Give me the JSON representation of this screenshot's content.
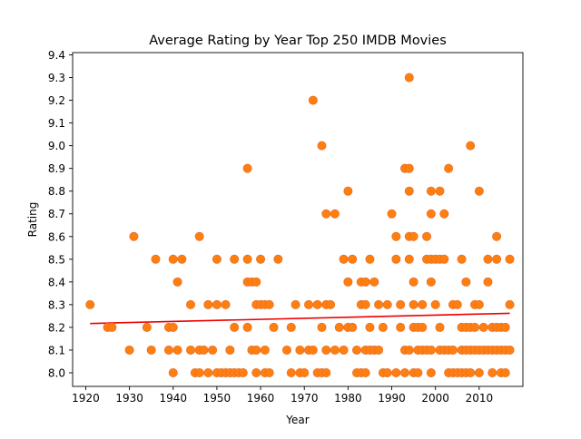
{
  "chart_data": {
    "type": "scatter",
    "title": "Average Rating by Year Top 250 IMDB Movies",
    "xlabel": "Year",
    "ylabel": "Rating",
    "xlim": [
      1917,
      2020
    ],
    "ylim": [
      7.94,
      9.41
    ],
    "xticks": [
      1920,
      1930,
      1940,
      1950,
      1960,
      1970,
      1980,
      1990,
      2000,
      2010
    ],
    "yticks": [
      "8.0",
      "8.1",
      "8.2",
      "8.3",
      "8.4",
      "8.5",
      "8.6",
      "8.7",
      "8.8",
      "8.9",
      "9.0",
      "9.1",
      "9.2",
      "9.3",
      "9.4"
    ],
    "grid": false,
    "legend": "none",
    "point_color": "#ff7f0e",
    "point_edge_color": "#e8702a",
    "trend_color": "#ee0000",
    "trendline": {
      "x": [
        1921,
        2017
      ],
      "y": [
        8.217,
        8.262
      ]
    },
    "points": [
      [
        1921,
        8.3
      ],
      [
        1925,
        8.2
      ],
      [
        1926,
        8.2
      ],
      [
        1930,
        8.1
      ],
      [
        1931,
        8.6
      ],
      [
        1934,
        8.2
      ],
      [
        1935,
        8.1
      ],
      [
        1936,
        8.5
      ],
      [
        1939,
        8.1
      ],
      [
        1939,
        8.2
      ],
      [
        1940,
        8.0
      ],
      [
        1940,
        8.2
      ],
      [
        1940,
        8.5
      ],
      [
        1941,
        8.1
      ],
      [
        1941,
        8.4
      ],
      [
        1942,
        8.5
      ],
      [
        1944,
        8.1
      ],
      [
        1944,
        8.3
      ],
      [
        1945,
        8.0
      ],
      [
        1946,
        8.0
      ],
      [
        1946,
        8.1
      ],
      [
        1946,
        8.6
      ],
      [
        1947,
        8.1
      ],
      [
        1948,
        8.0
      ],
      [
        1948,
        8.3
      ],
      [
        1949,
        8.1
      ],
      [
        1950,
        8.0
      ],
      [
        1950,
        8.3
      ],
      [
        1950,
        8.5
      ],
      [
        1951,
        8.0
      ],
      [
        1952,
        8.0
      ],
      [
        1952,
        8.3
      ],
      [
        1953,
        8.0
      ],
      [
        1953,
        8.1
      ],
      [
        1954,
        8.0
      ],
      [
        1954,
        8.2
      ],
      [
        1954,
        8.5
      ],
      [
        1955,
        8.0
      ],
      [
        1956,
        8.0
      ],
      [
        1957,
        8.2
      ],
      [
        1957,
        8.4
      ],
      [
        1957,
        8.5
      ],
      [
        1957,
        8.9
      ],
      [
        1958,
        8.1
      ],
      [
        1958,
        8.4
      ],
      [
        1959,
        8.0
      ],
      [
        1959,
        8.1
      ],
      [
        1959,
        8.3
      ],
      [
        1959,
        8.4
      ],
      [
        1960,
        8.3
      ],
      [
        1960,
        8.5
      ],
      [
        1961,
        8.0
      ],
      [
        1961,
        8.1
      ],
      [
        1961,
        8.3
      ],
      [
        1962,
        8.0
      ],
      [
        1962,
        8.3
      ],
      [
        1963,
        8.2
      ],
      [
        1964,
        8.5
      ],
      [
        1966,
        8.1
      ],
      [
        1967,
        8.0
      ],
      [
        1967,
        8.2
      ],
      [
        1968,
        8.3
      ],
      [
        1969,
        8.0
      ],
      [
        1969,
        8.1
      ],
      [
        1970,
        8.0
      ],
      [
        1971,
        8.1
      ],
      [
        1971,
        8.3
      ],
      [
        1972,
        8.1
      ],
      [
        1972,
        9.2
      ],
      [
        1973,
        8.0
      ],
      [
        1973,
        8.3
      ],
      [
        1974,
        8.0
      ],
      [
        1974,
        8.2
      ],
      [
        1974,
        9.0
      ],
      [
        1975,
        8.0
      ],
      [
        1975,
        8.1
      ],
      [
        1975,
        8.3
      ],
      [
        1975,
        8.7
      ],
      [
        1976,
        8.3
      ],
      [
        1977,
        8.1
      ],
      [
        1977,
        8.7
      ],
      [
        1978,
        8.2
      ],
      [
        1979,
        8.1
      ],
      [
        1979,
        8.5
      ],
      [
        1980,
        8.2
      ],
      [
        1980,
        8.4
      ],
      [
        1980,
        8.8
      ],
      [
        1981,
        8.2
      ],
      [
        1981,
        8.5
      ],
      [
        1982,
        8.0
      ],
      [
        1982,
        8.1
      ],
      [
        1983,
        8.0
      ],
      [
        1983,
        8.3
      ],
      [
        1983,
        8.4
      ],
      [
        1984,
        8.0
      ],
      [
        1984,
        8.1
      ],
      [
        1984,
        8.3
      ],
      [
        1984,
        8.4
      ],
      [
        1985,
        8.1
      ],
      [
        1985,
        8.2
      ],
      [
        1985,
        8.5
      ],
      [
        1986,
        8.1
      ],
      [
        1986,
        8.4
      ],
      [
        1987,
        8.1
      ],
      [
        1987,
        8.3
      ],
      [
        1988,
        8.0
      ],
      [
        1988,
        8.2
      ],
      [
        1989,
        8.0
      ],
      [
        1989,
        8.3
      ],
      [
        1990,
        8.7
      ],
      [
        1991,
        8.0
      ],
      [
        1991,
        8.5
      ],
      [
        1991,
        8.6
      ],
      [
        1992,
        8.2
      ],
      [
        1992,
        8.3
      ],
      [
        1993,
        8.0
      ],
      [
        1993,
        8.1
      ],
      [
        1993,
        8.9
      ],
      [
        1994,
        8.1
      ],
      [
        1994,
        8.5
      ],
      [
        1994,
        8.6
      ],
      [
        1994,
        8.8
      ],
      [
        1994,
        8.9
      ],
      [
        1994,
        9.3
      ],
      [
        1995,
        8.0
      ],
      [
        1995,
        8.2
      ],
      [
        1995,
        8.3
      ],
      [
        1995,
        8.4
      ],
      [
        1995,
        8.6
      ],
      [
        1996,
        8.0
      ],
      [
        1996,
        8.1
      ],
      [
        1996,
        8.2
      ],
      [
        1997,
        8.1
      ],
      [
        1997,
        8.2
      ],
      [
        1997,
        8.3
      ],
      [
        1998,
        8.1
      ],
      [
        1998,
        8.5
      ],
      [
        1998,
        8.6
      ],
      [
        1999,
        8.0
      ],
      [
        1999,
        8.1
      ],
      [
        1999,
        8.4
      ],
      [
        1999,
        8.5
      ],
      [
        1999,
        8.7
      ],
      [
        1999,
        8.8
      ],
      [
        2000,
        8.3
      ],
      [
        2000,
        8.5
      ],
      [
        2001,
        8.1
      ],
      [
        2001,
        8.2
      ],
      [
        2001,
        8.5
      ],
      [
        2001,
        8.8
      ],
      [
        2002,
        8.1
      ],
      [
        2002,
        8.5
      ],
      [
        2002,
        8.7
      ],
      [
        2003,
        8.0
      ],
      [
        2003,
        8.1
      ],
      [
        2003,
        8.9
      ],
      [
        2004,
        8.0
      ],
      [
        2004,
        8.1
      ],
      [
        2004,
        8.3
      ],
      [
        2005,
        8.0
      ],
      [
        2005,
        8.3
      ],
      [
        2006,
        8.0
      ],
      [
        2006,
        8.1
      ],
      [
        2006,
        8.2
      ],
      [
        2006,
        8.5
      ],
      [
        2007,
        8.0
      ],
      [
        2007,
        8.1
      ],
      [
        2007,
        8.2
      ],
      [
        2007,
        8.4
      ],
      [
        2008,
        8.0
      ],
      [
        2008,
        8.1
      ],
      [
        2008,
        8.2
      ],
      [
        2008,
        9.0
      ],
      [
        2009,
        8.1
      ],
      [
        2009,
        8.2
      ],
      [
        2009,
        8.3
      ],
      [
        2010,
        8.0
      ],
      [
        2010,
        8.1
      ],
      [
        2010,
        8.3
      ],
      [
        2010,
        8.8
      ],
      [
        2011,
        8.1
      ],
      [
        2011,
        8.2
      ],
      [
        2012,
        8.1
      ],
      [
        2012,
        8.4
      ],
      [
        2012,
        8.5
      ],
      [
        2013,
        8.0
      ],
      [
        2013,
        8.1
      ],
      [
        2013,
        8.2
      ],
      [
        2014,
        8.1
      ],
      [
        2014,
        8.2
      ],
      [
        2014,
        8.5
      ],
      [
        2014,
        8.6
      ],
      [
        2015,
        8.0
      ],
      [
        2015,
        8.1
      ],
      [
        2015,
        8.2
      ],
      [
        2016,
        8.0
      ],
      [
        2016,
        8.1
      ],
      [
        2016,
        8.2
      ],
      [
        2017,
        8.1
      ],
      [
        2017,
        8.3
      ],
      [
        2017,
        8.5
      ]
    ]
  }
}
